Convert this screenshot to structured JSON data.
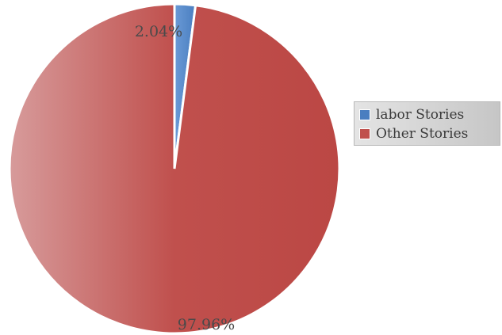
{
  "chart_data": {
    "type": "pie",
    "title": "",
    "categories": [
      "labor Stories",
      "Other Stories"
    ],
    "values": [
      2.04,
      97.96
    ],
    "labels": [
      "2.04%",
      "97.96%"
    ],
    "colors": [
      "#4a7ec0",
      "#c0504d"
    ],
    "legend_position": "right"
  }
}
